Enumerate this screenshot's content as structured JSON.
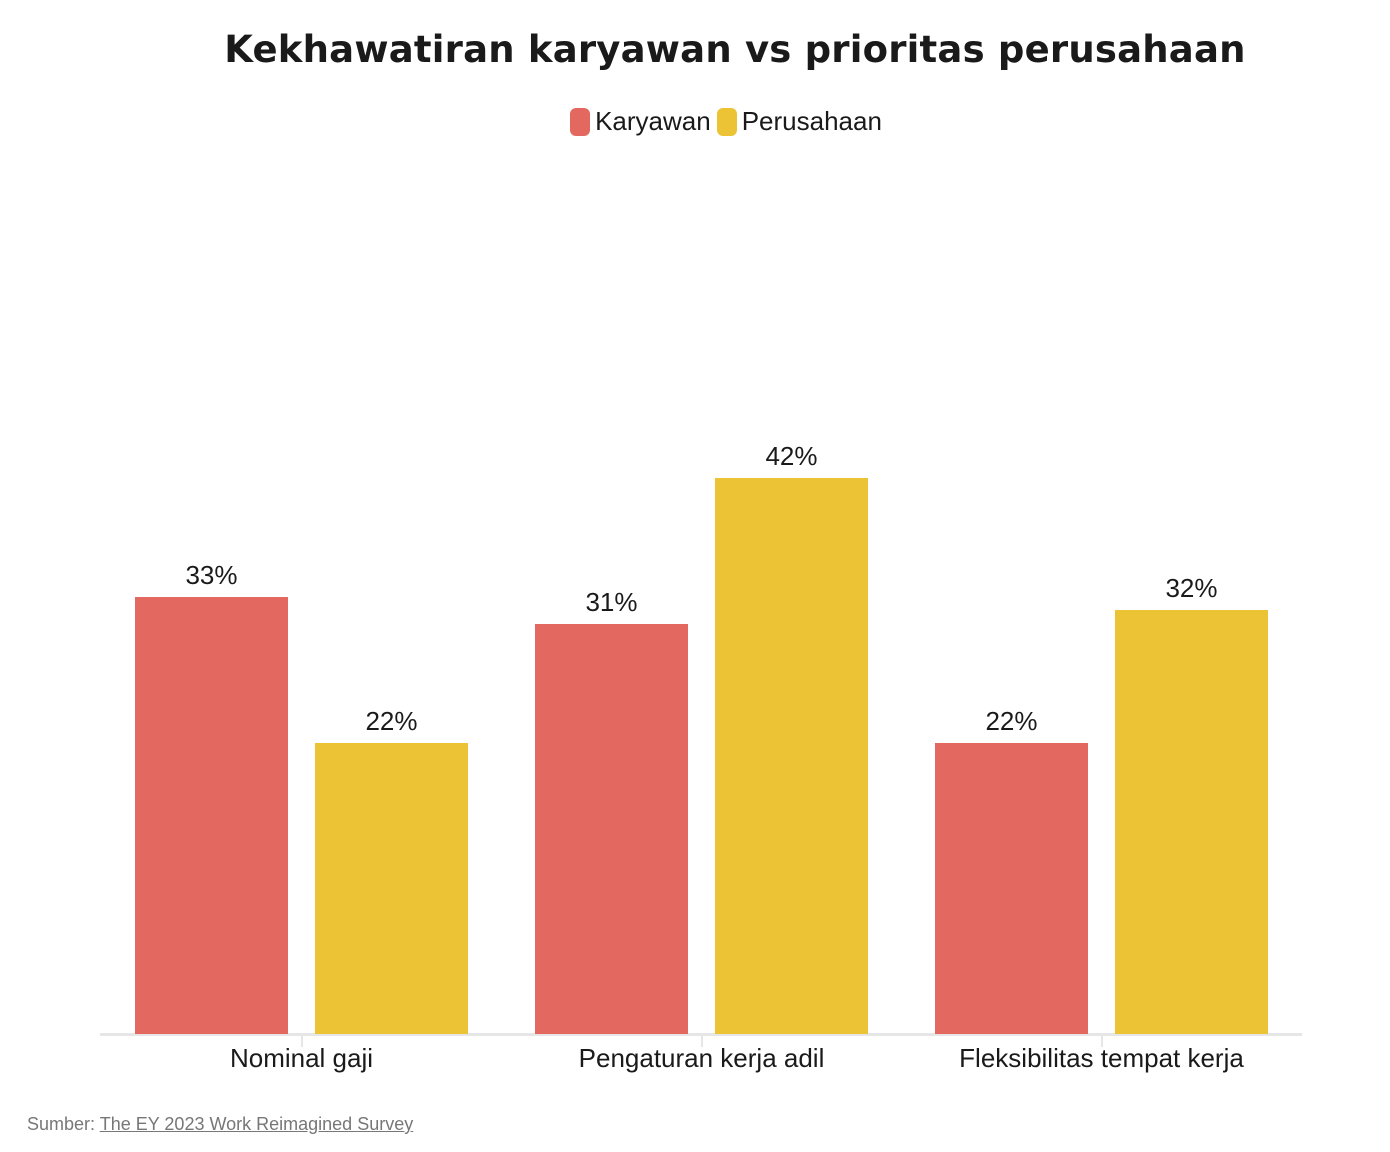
{
  "chart_data": {
    "type": "bar",
    "title": "Kekhawatiran karyawan vs prioritas perusahaan",
    "categories": [
      "Nominal gaji",
      "Pengaturan kerja adil",
      "Fleksibilitas tempat kerja"
    ],
    "series": [
      {
        "name": "Karyawan",
        "color": "#e3685f",
        "values": [
          33,
          31,
          22
        ],
        "labels": [
          "33%",
          "31%",
          "22%"
        ]
      },
      {
        "name": "Perusahaan",
        "color": "#ebc334",
        "values": [
          22,
          42,
          32
        ],
        "labels": [
          "22%",
          "42%",
          "32%"
        ]
      }
    ],
    "xlabel": "",
    "ylabel": "",
    "ylim": [
      0,
      42
    ],
    "grid": false,
    "legend_position": "top-center",
    "value_unit": "%"
  },
  "legend": {
    "items": [
      {
        "label": "Karyawan",
        "color": "#e3685f"
      },
      {
        "label": "Perusahaan",
        "color": "#ebc334"
      }
    ]
  },
  "source": {
    "prefix": "Sumber:",
    "link_text": "The EY 2023 Work Reimagined Survey"
  }
}
